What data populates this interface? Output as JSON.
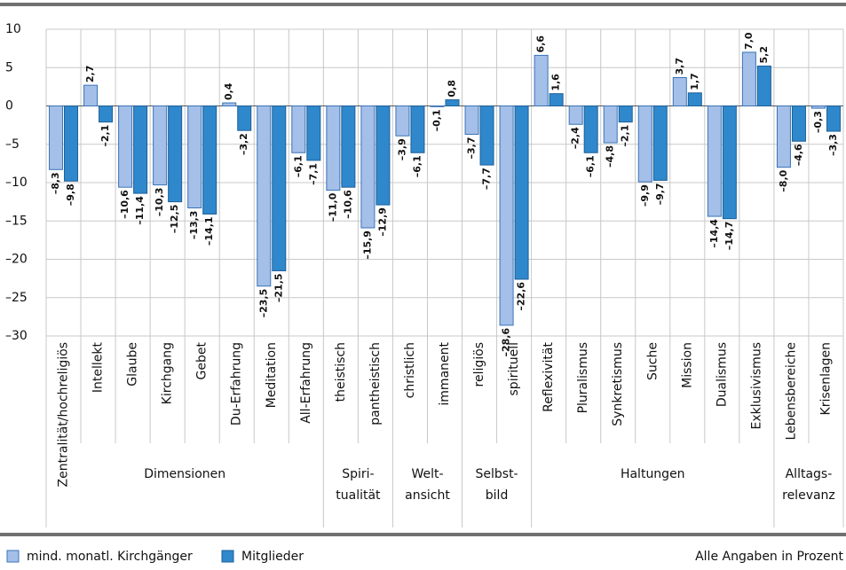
{
  "chart_data": {
    "type": "bar",
    "categories": [
      "Zentralität/hochreligiös",
      "Intellekt",
      "Glaube",
      "Kirchgang",
      "Gebet",
      "Du-Erfahrung",
      "Meditation",
      "All-Erfahrung",
      "theistisch",
      "pantheistisch",
      "christlich",
      "immanent",
      "religiös",
      "spirituell",
      "Reflexivität",
      "Pluralismus",
      "Synkretismus",
      "Suche",
      "Mission",
      "Dualismus",
      "Exklusivismus",
      "Lebensbereiche",
      "Krisenlagen"
    ],
    "groups": [
      {
        "name": [
          "Dimensionen"
        ],
        "count": 8
      },
      {
        "name": [
          "Spiri-",
          "tualität"
        ],
        "count": 2
      },
      {
        "name": [
          "Welt-",
          "ansicht"
        ],
        "count": 2
      },
      {
        "name": [
          "Selbst-",
          "bild"
        ],
        "count": 2
      },
      {
        "name": [
          "Haltungen"
        ],
        "count": 7
      },
      {
        "name": [
          "Alltags-",
          "relevanz"
        ],
        "count": 2
      }
    ],
    "series": [
      {
        "name": "mind. monatl. Kirchgänger",
        "color": "#a4bfe8",
        "border": "#3a74b8",
        "values": [
          -8.3,
          2.7,
          -10.6,
          -10.3,
          -13.3,
          0.4,
          -23.5,
          -6.1,
          -11.0,
          -15.9,
          -3.9,
          -0.1,
          -3.7,
          -28.6,
          6.6,
          -2.4,
          -4.8,
          -9.9,
          3.7,
          -14.4,
          7.0,
          -8.0,
          -0.3
        ],
        "value_labels": [
          "–8,3",
          "2,7",
          "–10,6",
          "–10,3",
          "–13,3",
          "0,4",
          "–23,5",
          "–6,1",
          "–11,0",
          "–15,9",
          "–3,9",
          "–0,1",
          "–3,7",
          "–28,6",
          "6,6",
          "–2,4",
          "–4,8",
          "–9,9",
          "3,7",
          "–14,4",
          "7,0",
          "–8,0",
          "–0,3"
        ]
      },
      {
        "name": "Mitglieder",
        "color": "#2f88cc",
        "border": "#1d5f98",
        "values": [
          -9.8,
          -2.1,
          -11.4,
          -12.5,
          -14.1,
          -3.2,
          -21.5,
          -7.1,
          -10.6,
          -12.9,
          -6.1,
          0.8,
          -7.7,
          -22.6,
          1.6,
          -6.1,
          -2.1,
          -9.7,
          1.7,
          -14.7,
          5.2,
          -4.6,
          -3.3
        ],
        "value_labels": [
          "–9,8",
          "–2,1",
          "–11,4",
          "–12,5",
          "–14,1",
          "–3,2",
          "–21,5",
          "–7,1",
          "–10,6",
          "–12,9",
          "–6,1",
          "0,8",
          "–7,7",
          "–22,6",
          "1,6",
          "–6,1",
          "–2,1",
          "–9,7",
          "1,7",
          "–14,7",
          "5,2",
          "–4,6",
          "–3,3"
        ]
      }
    ],
    "ylim": [
      -30,
      10
    ],
    "yticks": [
      10,
      5,
      0,
      {
        "value": -5,
        "label": "–5"
      },
      {
        "value": -10,
        "label": "–10"
      },
      {
        "value": -15,
        "label": "–15"
      },
      {
        "value": -20,
        "label": "–20"
      },
      {
        "value": -25,
        "label": "–25"
      },
      {
        "value": -30,
        "label": "–30"
      }
    ],
    "grid": true,
    "note": "Alle Angaben in Prozent"
  }
}
